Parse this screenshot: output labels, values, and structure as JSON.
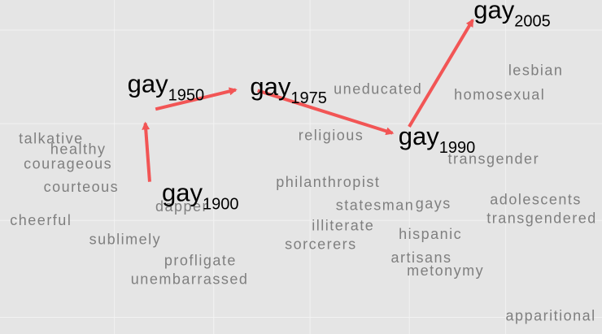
{
  "chart_data": {
    "type": "scatter",
    "title": "",
    "xlabel": "",
    "ylabel": "",
    "grid": true,
    "colors": {
      "background": "#e5e5e5",
      "grid": "#f2f2f2",
      "word": "#7f7f7f",
      "anchor": "#000000",
      "arrow": "#f25555"
    },
    "neighbor_words": [
      {
        "label": "talkative",
        "x": 0.085,
        "y": 0.57
      },
      {
        "label": "healthy",
        "x": 0.13,
        "y": 0.533
      },
      {
        "label": "courageous",
        "x": 0.113,
        "y": 0.483
      },
      {
        "label": "courteous",
        "x": 0.135,
        "y": 0.403
      },
      {
        "label": "cheerful",
        "x": 0.068,
        "y": 0.288
      },
      {
        "label": "sublimely",
        "x": 0.208,
        "y": 0.222
      },
      {
        "label": "dapper",
        "x": 0.302,
        "y": 0.336
      },
      {
        "label": "profligate",
        "x": 0.333,
        "y": 0.15
      },
      {
        "label": "unembarrassed",
        "x": 0.315,
        "y": 0.085
      },
      {
        "label": "uneducated",
        "x": 0.628,
        "y": 0.74
      },
      {
        "label": "religious",
        "x": 0.55,
        "y": 0.58
      },
      {
        "label": "philanthropist",
        "x": 0.545,
        "y": 0.42
      },
      {
        "label": "statesman",
        "x": 0.623,
        "y": 0.34
      },
      {
        "label": "illiterate",
        "x": 0.57,
        "y": 0.27
      },
      {
        "label": "sorcerers",
        "x": 0.533,
        "y": 0.205
      },
      {
        "label": "homosexual",
        "x": 0.83,
        "y": 0.72
      },
      {
        "label": "lesbian",
        "x": 0.89,
        "y": 0.805
      },
      {
        "label": "transgender",
        "x": 0.82,
        "y": 0.5
      },
      {
        "label": "adolescents",
        "x": 0.89,
        "y": 0.36
      },
      {
        "label": "transgendered",
        "x": 0.9,
        "y": 0.295
      },
      {
        "label": "gays",
        "x": 0.72,
        "y": 0.345
      },
      {
        "label": "hispanic",
        "x": 0.715,
        "y": 0.24
      },
      {
        "label": "artisans",
        "x": 0.7,
        "y": 0.16
      },
      {
        "label": "metonymy",
        "x": 0.74,
        "y": 0.115
      },
      {
        "label": "apparitional",
        "x": 0.915,
        "y": -0.04
      }
    ],
    "trajectory": [
      {
        "word": "gay",
        "year": "1900",
        "x": 0.25,
        "y": 0.385
      },
      {
        "word": "gay",
        "year": "1950",
        "x": 0.24,
        "y": 0.665
      },
      {
        "word": "gay",
        "year": "1975",
        "x": 0.41,
        "y": 0.75
      },
      {
        "word": "gay",
        "year": "1990",
        "x": 0.67,
        "y": 0.58
      },
      {
        "word": "gay",
        "year": "2005",
        "x": 0.795,
        "y": 1.015
      }
    ],
    "arrows": [
      {
        "from": "1900",
        "to": "1950"
      },
      {
        "from": "1950",
        "to": "1975"
      },
      {
        "from": "1975",
        "to": "1990"
      },
      {
        "from": "1990",
        "to": "2005"
      }
    ]
  }
}
